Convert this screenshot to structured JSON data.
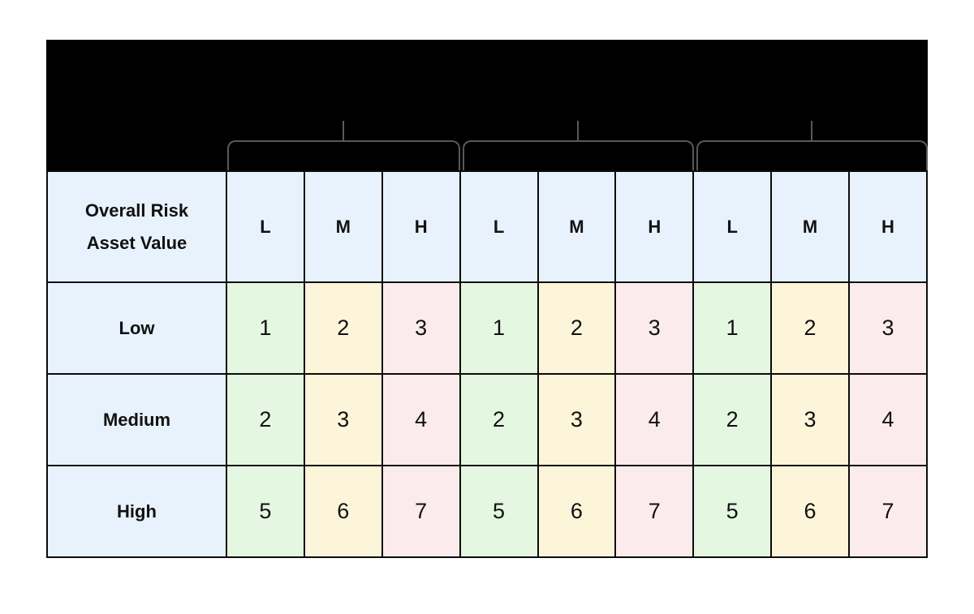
{
  "colors": {
    "banner_black": "#000000",
    "box_border_gray": "#595959",
    "table_border": "#0b0b0b",
    "header_blue": "#e8f2fc",
    "cell_green": "#e4f7e1",
    "cell_cream": "#fdf5da",
    "cell_pink": "#fcebec",
    "text": "#111111"
  },
  "matrix": {
    "corner": {
      "line1": "Overall Risk",
      "line2": "Asset Value"
    },
    "groups": [
      {
        "subcolumns": [
          "L",
          "M",
          "H"
        ]
      },
      {
        "subcolumns": [
          "L",
          "M",
          "H"
        ]
      },
      {
        "subcolumns": [
          "L",
          "M",
          "H"
        ]
      }
    ],
    "rows": [
      {
        "label": "Low",
        "values": [
          1,
          2,
          3,
          1,
          2,
          3,
          1,
          2,
          3
        ]
      },
      {
        "label": "Medium",
        "values": [
          2,
          3,
          4,
          2,
          3,
          4,
          2,
          3,
          4
        ]
      },
      {
        "label": "High",
        "values": [
          5,
          6,
          7,
          5,
          6,
          7,
          5,
          6,
          7
        ]
      }
    ]
  },
  "chart_data": {
    "type": "table",
    "title": "",
    "corner_header": "Overall Risk / Asset Value",
    "column_groups": 3,
    "columns": [
      "L",
      "M",
      "H",
      "L",
      "M",
      "H",
      "L",
      "M",
      "H"
    ],
    "row_labels": [
      "Low",
      "Medium",
      "High"
    ],
    "rows": [
      [
        1,
        2,
        3,
        1,
        2,
        3,
        1,
        2,
        3
      ],
      [
        2,
        3,
        4,
        2,
        3,
        4,
        2,
        3,
        4
      ],
      [
        5,
        6,
        7,
        5,
        6,
        7,
        5,
        6,
        7
      ]
    ],
    "cell_color_pattern_by_subcolumn": [
      "green",
      "cream",
      "pink"
    ]
  }
}
